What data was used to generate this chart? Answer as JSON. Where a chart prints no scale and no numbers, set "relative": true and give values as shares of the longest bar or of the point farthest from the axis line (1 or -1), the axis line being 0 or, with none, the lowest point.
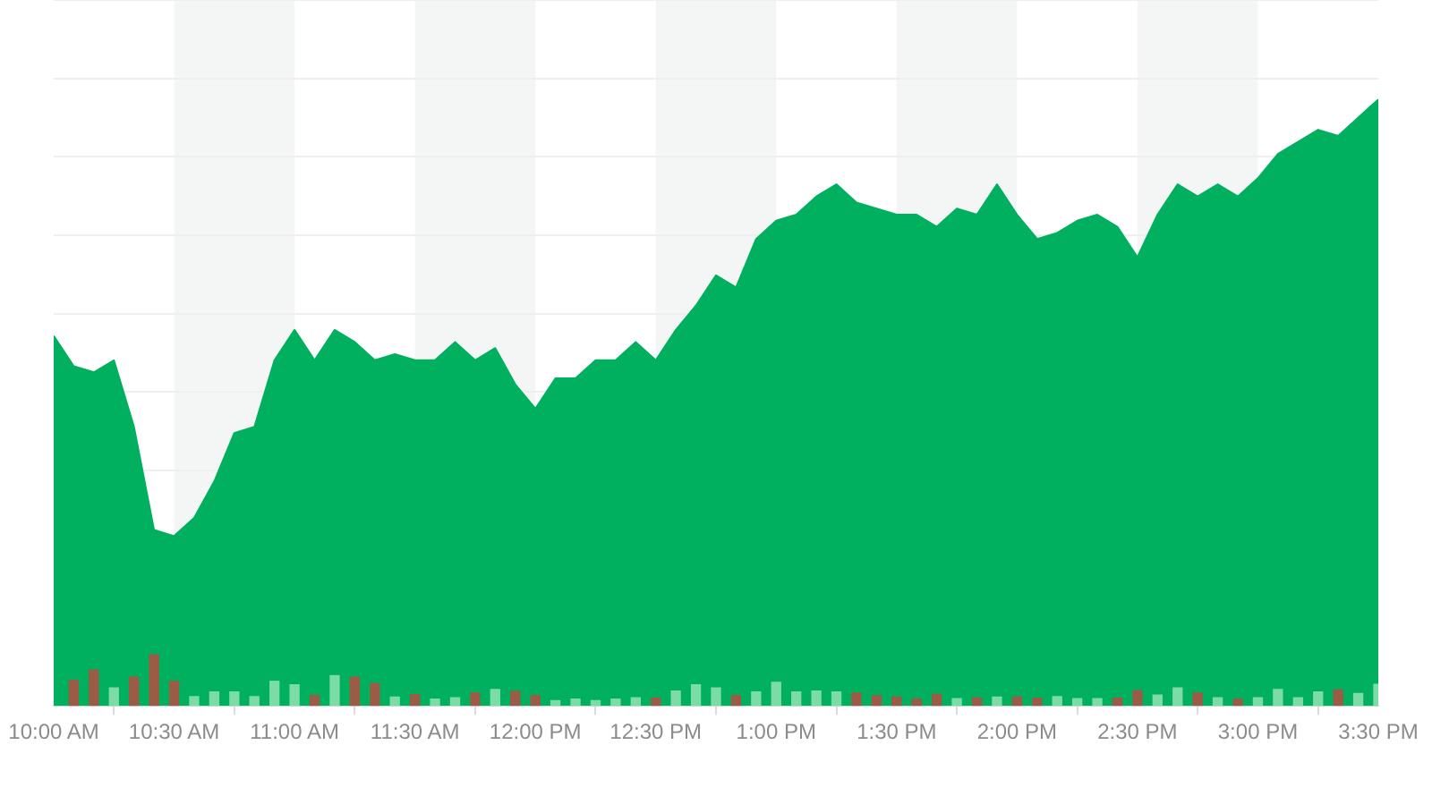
{
  "chart_data": {
    "type": "area",
    "relative": true,
    "grid": "y",
    "x": [
      10,
      10.0833,
      10.1667,
      10.25,
      10.3333,
      10.4167,
      10.5,
      10.5833,
      10.6667,
      10.75,
      10.8333,
      10.9167,
      11,
      11.0833,
      11.1667,
      11.25,
      11.3333,
      11.4167,
      11.5,
      11.5833,
      11.6667,
      11.75,
      11.8333,
      11.9167,
      12,
      12.0833,
      12.1667,
      12.25,
      12.3333,
      12.4167,
      12.5,
      12.5833,
      12.6667,
      12.75,
      12.8333,
      12.9167,
      13,
      13.0833,
      13.1667,
      13.25,
      13.3333,
      13.4167,
      13.5,
      13.5833,
      13.6667,
      13.75,
      13.8333,
      13.9167,
      14,
      14.0833,
      14.1667,
      14.25,
      14.3333,
      14.4167,
      14.5,
      14.5833,
      14.6667,
      14.75,
      14.8333,
      14.9167,
      15,
      15.0833,
      15.1667,
      15.25,
      15.3333,
      15.4167,
      15.5
    ],
    "xlim": [
      10,
      15.5
    ],
    "xticks": [
      {
        "value": 10,
        "label": "10:00 AM"
      },
      {
        "value": 10.5,
        "label": "10:30 AM"
      },
      {
        "value": 11,
        "label": "11:00 AM"
      },
      {
        "value": 11.5,
        "label": "11:30 AM"
      },
      {
        "value": 12,
        "label": "12:00 PM"
      },
      {
        "value": 12.5,
        "label": "12:30 PM"
      },
      {
        "value": 13,
        "label": "1:00 PM"
      },
      {
        "value": 13.5,
        "label": "1:30 PM"
      },
      {
        "value": 14,
        "label": "2:00 PM"
      },
      {
        "value": 14.5,
        "label": "2:30 PM"
      },
      {
        "value": 15,
        "label": "3:00 PM"
      },
      {
        "value": 15.5,
        "label": "3:30 PM"
      }
    ],
    "bands": [
      {
        "axis": "x",
        "from": 10.5,
        "to": 11,
        "color": "#f4f5f5"
      },
      {
        "axis": "x",
        "from": 11.5,
        "to": 12,
        "color": "#f4f5f5"
      },
      {
        "axis": "x",
        "from": 12.5,
        "to": 13,
        "color": "#f4f5f5"
      },
      {
        "axis": "x",
        "from": 13.5,
        "to": 14,
        "color": "#f4f5f5"
      },
      {
        "axis": "x",
        "from": 14.5,
        "to": 15,
        "color": "#f4f5f5"
      }
    ],
    "series": [
      {
        "color": "#00b05f",
        "values": [
          0.61,
          0.56,
          0.55,
          0.57,
          0.46,
          0.29,
          0.28,
          0.31,
          0.37,
          0.45,
          0.46,
          0.57,
          0.62,
          0.57,
          0.62,
          0.6,
          0.57,
          0.58,
          0.57,
          0.57,
          0.6,
          0.57,
          0.59,
          0.53,
          0.49,
          0.54,
          0.54,
          0.57,
          0.57,
          0.6,
          0.57,
          0.62,
          0.66,
          0.71,
          0.69,
          0.77,
          0.8,
          0.81,
          0.84,
          0.86,
          0.83,
          0.82,
          0.81,
          0.81,
          0.79,
          0.82,
          0.81,
          0.86,
          0.81,
          0.77,
          0.78,
          0.8,
          0.81,
          0.79,
          0.74,
          0.81,
          0.86,
          0.84,
          0.86,
          0.84,
          0.87,
          0.91,
          0.93,
          0.95,
          0.94,
          0.97,
          1
        ]
      },
      {
        "type": "bar",
        "axis": "y2",
        "values": [
          null,
          0.5,
          0.7,
          0.35,
          0.56,
          1,
          0.48,
          0.18,
          0.27,
          0.27,
          0.18,
          0.48,
          0.41,
          0.2,
          0.59,
          0.56,
          0.44,
          0.17,
          0.22,
          0.13,
          0.16,
          0.25,
          0.32,
          0.28,
          0.2,
          0.1,
          0.13,
          0.1,
          0.13,
          0.16,
          0.15,
          0.29,
          0.41,
          0.35,
          0.2,
          0.27,
          0.46,
          0.27,
          0.29,
          0.27,
          0.25,
          0.2,
          0.17,
          0.13,
          0.23,
          0.14,
          0.16,
          0.17,
          0.17,
          0.15,
          0.18,
          0.14,
          0.14,
          0.15,
          0.3,
          0.21,
          0.35,
          0.25,
          0.16,
          0.13,
          0.16,
          0.32,
          0.16,
          0.27,
          0.31,
          0.24,
          0.42
        ],
        "colors": [
          null,
          "#9c5b44",
          "#9c5b44",
          "#7bdca6",
          "#9c5b44",
          "#9c5b44",
          "#9c5b44",
          "#7bdca6",
          "#7bdca6",
          "#7bdca6",
          "#7bdca6",
          "#7bdca6",
          "#7bdca6",
          "#9c5b44",
          "#7bdca6",
          "#9c5b44",
          "#9c5b44",
          "#7bdca6",
          "#9c5b44",
          "#7bdca6",
          "#7bdca6",
          "#9c5b44",
          "#7bdca6",
          "#9c5b44",
          "#9c5b44",
          "#7bdca6",
          "#7bdca6",
          "#7bdca6",
          "#7bdca6",
          "#7bdca6",
          "#9c5b44",
          "#7bdca6",
          "#7bdca6",
          "#7bdca6",
          "#9c5b44",
          "#7bdca6",
          "#7bdca6",
          "#7bdca6",
          "#7bdca6",
          "#7bdca6",
          "#9c5b44",
          "#9c5b44",
          "#9c5b44",
          "#9c5b44",
          "#9c5b44",
          "#7bdca6",
          "#9c5b44",
          "#7bdca6",
          "#9c5b44",
          "#9c5b44",
          "#7bdca6",
          "#7bdca6",
          "#7bdca6",
          "#9c5b44",
          "#9c5b44",
          "#7bdca6",
          "#7bdca6",
          "#9c5b44",
          "#7bdca6",
          "#9c5b44",
          "#7bdca6",
          "#7bdca6",
          "#7bdca6",
          "#7bdca6",
          "#9c5b44",
          "#7bdca6",
          "#7bdca6"
        ]
      }
    ]
  }
}
